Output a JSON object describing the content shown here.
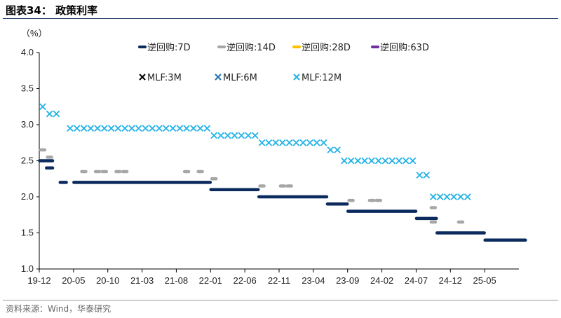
{
  "header": {
    "title": "图表34：  政策利率"
  },
  "footer": {
    "source": "资料来源：Wind，华泰研究"
  },
  "chart_data": {
    "type": "scatter",
    "title": "",
    "xlabel": "",
    "ylabel": "（%）",
    "ylim": [
      1.0,
      4.0
    ],
    "yticks": [
      "1.0",
      "1.5",
      "2.0",
      "2.5",
      "3.0",
      "3.5",
      "4.0"
    ],
    "x_ticks": [
      "19-12",
      "20-05",
      "20-10",
      "21-03",
      "21-08",
      "22-01",
      "22-06",
      "22-11",
      "23-04",
      "23-09",
      "24-02",
      "24-07",
      "24-12",
      "25-05"
    ],
    "x_range": [
      "2019-12",
      "2025-10"
    ],
    "legend_placement": "top",
    "series": [
      {
        "name": "逆回购:7D",
        "marker": "dash",
        "color": "#0b2a5e",
        "segments": [
          {
            "from": "2019-12",
            "to": "2020-01",
            "value": 2.5
          },
          {
            "from": "2020-01",
            "to": "2020-01",
            "value": 2.4
          },
          {
            "from": "2020-03",
            "to": "2020-03",
            "value": 2.2
          },
          {
            "from": "2020-05",
            "to": "2020-09",
            "value": 2.2
          },
          {
            "from": "2020-10",
            "to": "2021-12",
            "value": 2.2
          },
          {
            "from": "2022-01",
            "to": "2022-01",
            "value": 2.1
          },
          {
            "from": "2022-01",
            "to": "2022-07",
            "value": 2.1
          },
          {
            "from": "2022-08",
            "to": "2023-05",
            "value": 2.0
          },
          {
            "from": "2023-06",
            "to": "2023-08",
            "value": 1.9
          },
          {
            "from": "2023-09",
            "to": "2024-06",
            "value": 1.8
          },
          {
            "from": "2024-07",
            "to": "2024-09",
            "value": 1.7
          },
          {
            "from": "2024-10",
            "to": "2025-04",
            "value": 1.5
          },
          {
            "from": "2025-05",
            "to": "2025-10",
            "value": 1.4
          }
        ]
      },
      {
        "name": "逆回购:14D",
        "marker": "dash",
        "color": "#a6a6a6",
        "points": [
          [
            "2019-12",
            2.65
          ],
          [
            "2020-01",
            2.55
          ],
          [
            "2020-06",
            2.35
          ],
          [
            "2020-08",
            2.35
          ],
          [
            "2020-09",
            2.35
          ],
          [
            "2020-11",
            2.35
          ],
          [
            "2020-12",
            2.35
          ],
          [
            "2021-09",
            2.35
          ],
          [
            "2021-11",
            2.35
          ],
          [
            "2022-01",
            2.25
          ],
          [
            "2022-08",
            2.15
          ],
          [
            "2022-11",
            2.15
          ],
          [
            "2022-12",
            2.15
          ],
          [
            "2023-09",
            1.95
          ],
          [
            "2023-12",
            1.95
          ],
          [
            "2024-01",
            1.95
          ],
          [
            "2024-09",
            1.85
          ],
          [
            "2024-09",
            1.65
          ],
          [
            "2025-01",
            1.65
          ]
        ]
      },
      {
        "name": "逆回购:28D",
        "marker": "dash",
        "color": "#ffc000",
        "points": []
      },
      {
        "name": "逆回购:63D",
        "marker": "dash",
        "color": "#7030a0",
        "points": []
      },
      {
        "name": "MLF:3M",
        "marker": "x",
        "color": "#000000",
        "points": []
      },
      {
        "name": "MLF:6M",
        "marker": "x",
        "color": "#1f6fb5",
        "points": []
      },
      {
        "name": "MLF:12M",
        "marker": "x",
        "color": "#1fb1e6",
        "points": [
          [
            "2019-12",
            3.25
          ],
          [
            "2020-01",
            3.15
          ],
          [
            "2020-02",
            3.15
          ],
          [
            "2020-04",
            2.95
          ],
          [
            "2020-05",
            2.95
          ],
          [
            "2020-06",
            2.95
          ],
          [
            "2020-07",
            2.95
          ],
          [
            "2020-08",
            2.95
          ],
          [
            "2020-09",
            2.95
          ],
          [
            "2020-10",
            2.95
          ],
          [
            "2020-11",
            2.95
          ],
          [
            "2020-12",
            2.95
          ],
          [
            "2021-01",
            2.95
          ],
          [
            "2021-02",
            2.95
          ],
          [
            "2021-03",
            2.95
          ],
          [
            "2021-04",
            2.95
          ],
          [
            "2021-05",
            2.95
          ],
          [
            "2021-06",
            2.95
          ],
          [
            "2021-07",
            2.95
          ],
          [
            "2021-08",
            2.95
          ],
          [
            "2021-09",
            2.95
          ],
          [
            "2021-10",
            2.95
          ],
          [
            "2021-11",
            2.95
          ],
          [
            "2021-12",
            2.95
          ],
          [
            "2022-01",
            2.85
          ],
          [
            "2022-02",
            2.85
          ],
          [
            "2022-03",
            2.85
          ],
          [
            "2022-04",
            2.85
          ],
          [
            "2022-05",
            2.85
          ],
          [
            "2022-06",
            2.85
          ],
          [
            "2022-07",
            2.85
          ],
          [
            "2022-08",
            2.75
          ],
          [
            "2022-09",
            2.75
          ],
          [
            "2022-10",
            2.75
          ],
          [
            "2022-11",
            2.75
          ],
          [
            "2022-12",
            2.75
          ],
          [
            "2023-01",
            2.75
          ],
          [
            "2023-02",
            2.75
          ],
          [
            "2023-03",
            2.75
          ],
          [
            "2023-04",
            2.75
          ],
          [
            "2023-05",
            2.75
          ],
          [
            "2023-06",
            2.65
          ],
          [
            "2023-07",
            2.65
          ],
          [
            "2023-08",
            2.5
          ],
          [
            "2023-09",
            2.5
          ],
          [
            "2023-10",
            2.5
          ],
          [
            "2023-11",
            2.5
          ],
          [
            "2023-12",
            2.5
          ],
          [
            "2024-01",
            2.5
          ],
          [
            "2024-02",
            2.5
          ],
          [
            "2024-03",
            2.5
          ],
          [
            "2024-04",
            2.5
          ],
          [
            "2024-05",
            2.5
          ],
          [
            "2024-06",
            2.5
          ],
          [
            "2024-07",
            2.3
          ],
          [
            "2024-08",
            2.3
          ],
          [
            "2024-09",
            2.0
          ],
          [
            "2024-10",
            2.0
          ],
          [
            "2024-11",
            2.0
          ],
          [
            "2024-12",
            2.0
          ],
          [
            "2025-01",
            2.0
          ],
          [
            "2025-02",
            2.0
          ]
        ]
      }
    ]
  }
}
